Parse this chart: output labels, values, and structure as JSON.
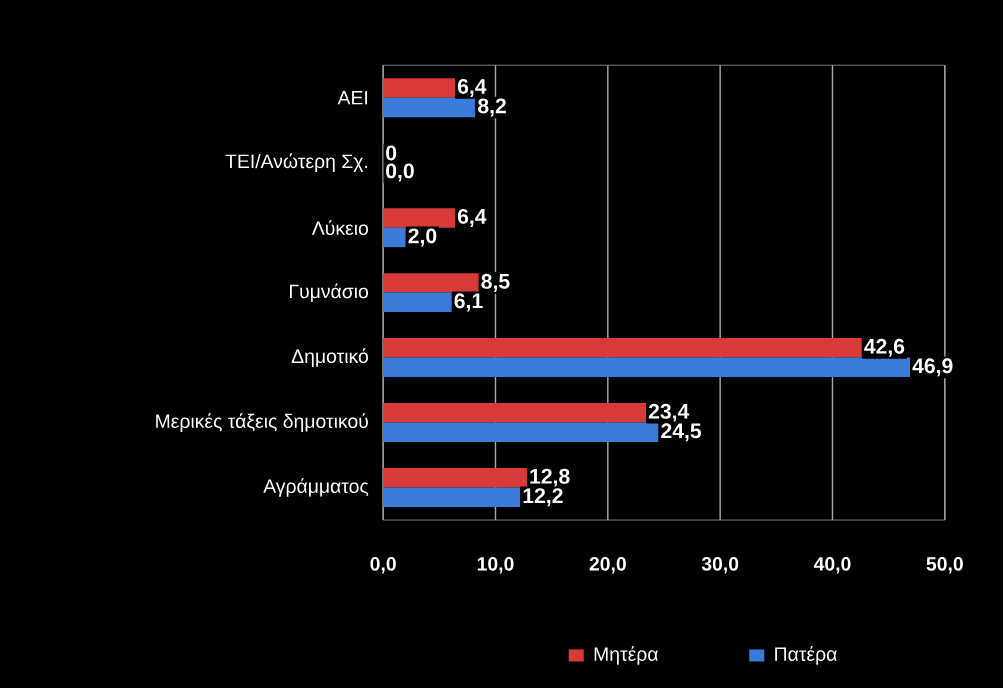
{
  "chart_data": {
    "type": "bar",
    "orientation": "horizontal",
    "categories": [
      "ΑΕΙ",
      "ΤΕΙ/Ανώτερη Σχ.",
      "Λύκειο",
      "Γυμνάσιο",
      "Δημοτικό",
      "Μερικές τάξεις δημοτικού",
      "Αγράμματος"
    ],
    "series": [
      {
        "name": "Μητέρα",
        "color": "#d83a3a",
        "values": [
          6.4,
          0,
          6.4,
          8.5,
          42.6,
          23.4,
          12.8
        ],
        "value_labels": [
          "6,4",
          "0",
          "6,4",
          "8,5",
          "42,6",
          "23,4",
          "12,8"
        ]
      },
      {
        "name": "Πατέρα",
        "color": "#3a7ad8",
        "values": [
          8.2,
          0.0,
          2.0,
          6.1,
          46.9,
          24.5,
          12.2
        ],
        "value_labels": [
          "8,2",
          "0,0",
          "2,0",
          "6,1",
          "46,9",
          "24,5",
          "12,2"
        ]
      }
    ],
    "xlim": [
      0,
      50
    ],
    "xticks": [
      {
        "value": 0,
        "label": "0,0"
      },
      {
        "value": 10,
        "label": "10,0"
      },
      {
        "value": 20,
        "label": "20,0"
      },
      {
        "value": 30,
        "label": "30,0"
      },
      {
        "value": 40,
        "label": "40,0"
      },
      {
        "value": 50,
        "label": "50,0"
      }
    ],
    "grid": "x",
    "legend": "bottom"
  }
}
